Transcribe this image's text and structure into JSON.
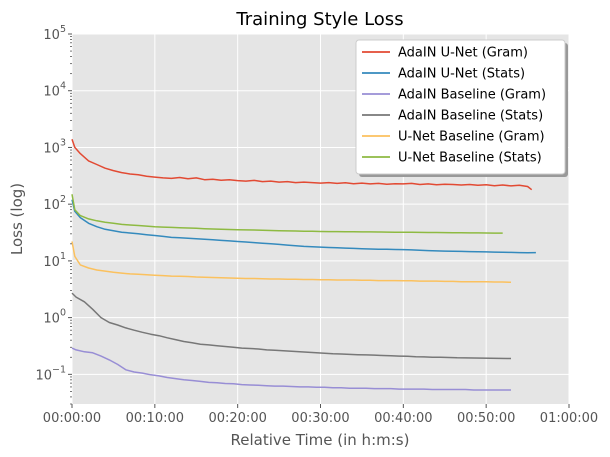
{
  "chart_data": {
    "type": "line",
    "title": "Training Style Loss",
    "xlabel": "Relative Time (in h:m:s)",
    "ylabel": "Loss (log)",
    "y_scale": "log",
    "ylim": [
      0.03,
      100000
    ],
    "xlim_seconds": [
      0,
      3600
    ],
    "x_units": "seconds of elapsed time",
    "x_ticks": [
      {
        "value": 0,
        "label": "00:00:00"
      },
      {
        "value": 600,
        "label": "00:10:00"
      },
      {
        "value": 1200,
        "label": "00:20:00"
      },
      {
        "value": 1800,
        "label": "00:30:00"
      },
      {
        "value": 2400,
        "label": "00:40:00"
      },
      {
        "value": 3000,
        "label": "00:50:00"
      },
      {
        "value": 3600,
        "label": "01:00:00"
      }
    ],
    "y_ticks": [
      {
        "value": 0.1,
        "base": "10",
        "exp": "−1"
      },
      {
        "value": 1,
        "base": "10",
        "exp": "0"
      },
      {
        "value": 10,
        "base": "10",
        "exp": "1"
      },
      {
        "value": 100,
        "base": "10",
        "exp": "2"
      },
      {
        "value": 1000,
        "base": "10",
        "exp": "3"
      },
      {
        "value": 10000,
        "base": "10",
        "exp": "4"
      },
      {
        "value": 100000,
        "base": "10",
        "exp": "5"
      }
    ],
    "grid": true,
    "legend_position": "top-right",
    "series": [
      {
        "name": "AdaIN U-Net (Gram)",
        "color": "#E24A33",
        "x": [
          0,
          20,
          60,
          120,
          180,
          240,
          300,
          360,
          420,
          480,
          540,
          600,
          660,
          720,
          780,
          840,
          900,
          960,
          1020,
          1080,
          1140,
          1200,
          1260,
          1320,
          1380,
          1440,
          1500,
          1560,
          1620,
          1680,
          1740,
          1800,
          1860,
          1920,
          1980,
          2040,
          2100,
          2160,
          2220,
          2280,
          2340,
          2400,
          2460,
          2520,
          2580,
          2640,
          2700,
          2760,
          2820,
          2880,
          2940,
          3000,
          3060,
          3120,
          3180,
          3240,
          3300,
          3330
        ],
        "y": [
          1400,
          1000,
          780,
          580,
          500,
          430,
          390,
          360,
          340,
          330,
          310,
          300,
          290,
          285,
          295,
          280,
          290,
          270,
          275,
          265,
          270,
          260,
          255,
          262,
          250,
          255,
          245,
          250,
          240,
          245,
          240,
          235,
          240,
          232,
          238,
          230,
          235,
          228,
          232,
          225,
          230,
          228,
          232,
          222,
          228,
          220,
          225,
          222,
          218,
          222,
          215,
          220,
          212,
          218,
          210,
          215,
          205,
          180
        ]
      },
      {
        "name": "AdaIN U-Net (Stats)",
        "color": "#348ABD",
        "x": [
          0,
          20,
          60,
          120,
          180,
          240,
          300,
          360,
          420,
          480,
          540,
          600,
          660,
          720,
          780,
          840,
          900,
          960,
          1020,
          1080,
          1140,
          1200,
          1260,
          1320,
          1380,
          1440,
          1500,
          1560,
          1620,
          1680,
          1740,
          1800,
          1860,
          1920,
          1980,
          2040,
          2100,
          2160,
          2220,
          2280,
          2340,
          2400,
          2460,
          2520,
          2580,
          2640,
          2700,
          2760,
          2820,
          2880,
          2940,
          3000,
          3060,
          3120,
          3180,
          3240,
          3300,
          3360
        ],
        "y": [
          120,
          75,
          58,
          46,
          40,
          36,
          34,
          32,
          31,
          30,
          29,
          28,
          27,
          26,
          25.5,
          25,
          24.5,
          24,
          23.5,
          23,
          22.5,
          22,
          21.5,
          21,
          20.5,
          20,
          19.5,
          19,
          18.5,
          18,
          17.8,
          17.5,
          17.2,
          17,
          16.8,
          16.6,
          16.4,
          16.2,
          16.1,
          16,
          15.9,
          15.8,
          15.6,
          15.4,
          15.2,
          15,
          14.9,
          14.8,
          14.7,
          14.6,
          14.5,
          14.4,
          14.3,
          14.2,
          14.1,
          14,
          13.9,
          14
        ]
      },
      {
        "name": "AdaIN Baseline (Gram)",
        "color": "#988ED5",
        "x": [
          0,
          30,
          90,
          150,
          210,
          270,
          330,
          390,
          450,
          510,
          570,
          630,
          690,
          750,
          810,
          870,
          930,
          990,
          1050,
          1110,
          1170,
          1230,
          1290,
          1350,
          1410,
          1470,
          1530,
          1590,
          1650,
          1710,
          1770,
          1830,
          1890,
          1950,
          2010,
          2070,
          2130,
          2190,
          2250,
          2310,
          2370,
          2430,
          2490,
          2550,
          2610,
          2670,
          2730,
          2790,
          2850,
          2910,
          2970,
          3030,
          3090,
          3150,
          3180
        ],
        "y": [
          0.29,
          0.27,
          0.25,
          0.24,
          0.21,
          0.18,
          0.15,
          0.12,
          0.11,
          0.105,
          0.098,
          0.094,
          0.088,
          0.084,
          0.08,
          0.078,
          0.075,
          0.072,
          0.071,
          0.069,
          0.068,
          0.066,
          0.065,
          0.064,
          0.063,
          0.062,
          0.062,
          0.061,
          0.06,
          0.06,
          0.059,
          0.059,
          0.058,
          0.058,
          0.057,
          0.057,
          0.057,
          0.056,
          0.056,
          0.056,
          0.055,
          0.055,
          0.055,
          0.055,
          0.054,
          0.054,
          0.054,
          0.054,
          0.054,
          0.053,
          0.053,
          0.053,
          0.053,
          0.053,
          0.053
        ]
      },
      {
        "name": "AdaIN Baseline (Stats)",
        "color": "#777777",
        "x": [
          0,
          30,
          90,
          150,
          210,
          270,
          330,
          390,
          450,
          510,
          570,
          630,
          690,
          750,
          810,
          870,
          930,
          990,
          1050,
          1110,
          1170,
          1230,
          1290,
          1350,
          1410,
          1470,
          1530,
          1590,
          1650,
          1710,
          1770,
          1830,
          1890,
          1950,
          2010,
          2070,
          2130,
          2190,
          2250,
          2310,
          2370,
          2430,
          2490,
          2550,
          2610,
          2670,
          2730,
          2790,
          2850,
          2910,
          2970,
          3030,
          3090,
          3150,
          3180
        ],
        "y": [
          2.7,
          2.3,
          1.9,
          1.4,
          1.0,
          0.82,
          0.74,
          0.66,
          0.6,
          0.55,
          0.51,
          0.48,
          0.44,
          0.41,
          0.38,
          0.36,
          0.34,
          0.33,
          0.32,
          0.31,
          0.3,
          0.29,
          0.285,
          0.28,
          0.27,
          0.265,
          0.26,
          0.255,
          0.25,
          0.245,
          0.24,
          0.235,
          0.23,
          0.228,
          0.225,
          0.222,
          0.22,
          0.218,
          0.215,
          0.212,
          0.21,
          0.208,
          0.205,
          0.203,
          0.2,
          0.2,
          0.198,
          0.196,
          0.195,
          0.194,
          0.193,
          0.192,
          0.191,
          0.19,
          0.19
        ]
      },
      {
        "name": "U-Net Baseline (Gram)",
        "color": "#FBC15E",
        "x": [
          0,
          20,
          60,
          120,
          180,
          240,
          300,
          360,
          420,
          480,
          540,
          600,
          660,
          720,
          780,
          840,
          900,
          960,
          1020,
          1080,
          1140,
          1200,
          1260,
          1320,
          1380,
          1440,
          1500,
          1560,
          1620,
          1680,
          1740,
          1800,
          1860,
          1920,
          1980,
          2040,
          2100,
          2160,
          2220,
          2280,
          2340,
          2400,
          2460,
          2520,
          2580,
          2640,
          2700,
          2760,
          2820,
          2880,
          2940,
          3000,
          3060,
          3120,
          3180
        ],
        "y": [
          22,
          12,
          8.5,
          7.5,
          6.9,
          6.6,
          6.3,
          6.1,
          5.9,
          5.8,
          5.7,
          5.6,
          5.5,
          5.4,
          5.35,
          5.3,
          5.2,
          5.15,
          5.1,
          5.05,
          5.0,
          4.95,
          4.9,
          4.9,
          4.85,
          4.8,
          4.8,
          4.75,
          4.75,
          4.7,
          4.7,
          4.65,
          4.65,
          4.6,
          4.6,
          4.6,
          4.55,
          4.55,
          4.5,
          4.5,
          4.5,
          4.45,
          4.45,
          4.4,
          4.4,
          4.4,
          4.35,
          4.35,
          4.3,
          4.3,
          4.3,
          4.3,
          4.25,
          4.25,
          4.2
        ]
      },
      {
        "name": "U-Net Baseline (Stats)",
        "color": "#8EBA42",
        "x": [
          0,
          20,
          60,
          120,
          180,
          240,
          300,
          360,
          420,
          480,
          540,
          600,
          660,
          720,
          780,
          840,
          900,
          960,
          1020,
          1080,
          1140,
          1200,
          1260,
          1320,
          1380,
          1440,
          1500,
          1560,
          1620,
          1680,
          1740,
          1800,
          1860,
          1920,
          1980,
          2040,
          2100,
          2160,
          2220,
          2280,
          2340,
          2400,
          2460,
          2520,
          2580,
          2640,
          2700,
          2760,
          2820,
          2880,
          2940,
          3000,
          3060,
          3120
        ],
        "y": [
          150,
          80,
          63,
          55,
          51,
          48,
          46,
          44,
          43,
          42,
          41,
          40,
          39.5,
          39,
          38.5,
          38,
          37.5,
          37,
          36.5,
          36,
          35.8,
          35.5,
          35.2,
          35,
          34.7,
          34.4,
          34.1,
          33.8,
          33.6,
          33.4,
          33.2,
          33,
          32.9,
          32.8,
          32.7,
          32.6,
          32.5,
          32.4,
          32.3,
          32.2,
          32.1,
          32,
          31.9,
          31.8,
          31.7,
          31.6,
          31.5,
          31.4,
          31.3,
          31.2,
          31.1,
          31,
          30.9,
          30.9
        ]
      }
    ]
  }
}
